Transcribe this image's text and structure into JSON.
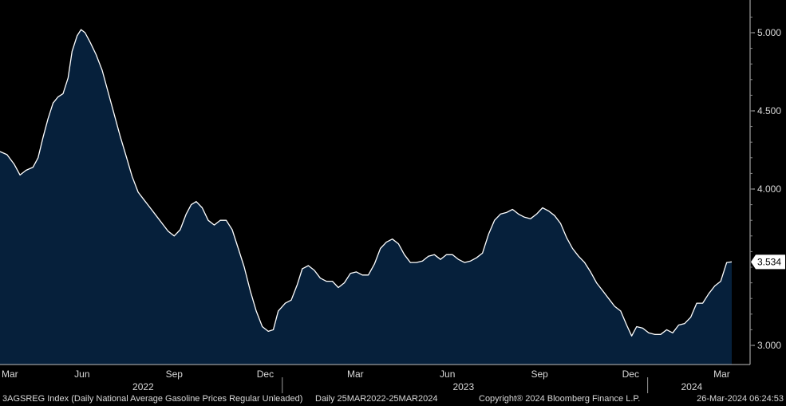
{
  "colors": {
    "background": "#000000",
    "area_fill": "#06203b",
    "line": "#ffffff",
    "text": "#d8d8d8",
    "last_value_bg": "#ffffff",
    "last_value_text": "#000000"
  },
  "footer": {
    "ticker": "3AGSREG Index (Daily National Average Gasoline Prices Regular Unleaded)",
    "range": "Daily 25MAR2022-25MAR2024",
    "copyright": "Copyright® 2024 Bloomberg Finance L.P.",
    "timestamp": "26-Mar-2024 06:24:53"
  },
  "chart_data": {
    "type": "area",
    "series": [
      {
        "points": [
          [
            "2022-03-25",
            4.24
          ],
          [
            "2022-04-01",
            4.22
          ],
          [
            "2022-04-08",
            4.16
          ],
          [
            "2022-04-14",
            4.09
          ],
          [
            "2022-04-20",
            4.12
          ],
          [
            "2022-04-27",
            4.14
          ],
          [
            "2022-05-02",
            4.2
          ],
          [
            "2022-05-07",
            4.33
          ],
          [
            "2022-05-12",
            4.45
          ],
          [
            "2022-05-17",
            4.55
          ],
          [
            "2022-05-22",
            4.59
          ],
          [
            "2022-05-27",
            4.61
          ],
          [
            "2022-06-01",
            4.71
          ],
          [
            "2022-06-05",
            4.88
          ],
          [
            "2022-06-10",
            4.98
          ],
          [
            "2022-06-14",
            5.02
          ],
          [
            "2022-06-18",
            5.0
          ],
          [
            "2022-06-23",
            4.94
          ],
          [
            "2022-06-29",
            4.86
          ],
          [
            "2022-07-05",
            4.76
          ],
          [
            "2022-07-11",
            4.62
          ],
          [
            "2022-07-17",
            4.48
          ],
          [
            "2022-07-23",
            4.34
          ],
          [
            "2022-07-29",
            4.21
          ],
          [
            "2022-08-04",
            4.08
          ],
          [
            "2022-08-10",
            3.98
          ],
          [
            "2022-08-16",
            3.93
          ],
          [
            "2022-08-22",
            3.88
          ],
          [
            "2022-08-28",
            3.83
          ],
          [
            "2022-09-03",
            3.78
          ],
          [
            "2022-09-09",
            3.73
          ],
          [
            "2022-09-15",
            3.7
          ],
          [
            "2022-09-21",
            3.74
          ],
          [
            "2022-09-27",
            3.84
          ],
          [
            "2022-10-02",
            3.9
          ],
          [
            "2022-10-07",
            3.92
          ],
          [
            "2022-10-13",
            3.88
          ],
          [
            "2022-10-19",
            3.8
          ],
          [
            "2022-10-25",
            3.77
          ],
          [
            "2022-10-31",
            3.8
          ],
          [
            "2022-11-06",
            3.8
          ],
          [
            "2022-11-12",
            3.74
          ],
          [
            "2022-11-18",
            3.62
          ],
          [
            "2022-11-24",
            3.5
          ],
          [
            "2022-11-30",
            3.35
          ],
          [
            "2022-12-06",
            3.22
          ],
          [
            "2022-12-12",
            3.12
          ],
          [
            "2022-12-18",
            3.09
          ],
          [
            "2022-12-23",
            3.1
          ],
          [
            "2022-12-28",
            3.22
          ],
          [
            "2023-01-04",
            3.27
          ],
          [
            "2023-01-10",
            3.29
          ],
          [
            "2023-01-16",
            3.39
          ],
          [
            "2023-01-21",
            3.49
          ],
          [
            "2023-01-27",
            3.51
          ],
          [
            "2023-02-02",
            3.48
          ],
          [
            "2023-02-08",
            3.43
          ],
          [
            "2023-02-14",
            3.41
          ],
          [
            "2023-02-20",
            3.41
          ],
          [
            "2023-02-26",
            3.37
          ],
          [
            "2023-03-04",
            3.4
          ],
          [
            "2023-03-10",
            3.46
          ],
          [
            "2023-03-16",
            3.47
          ],
          [
            "2023-03-22",
            3.45
          ],
          [
            "2023-03-28",
            3.45
          ],
          [
            "2023-04-03",
            3.52
          ],
          [
            "2023-04-09",
            3.62
          ],
          [
            "2023-04-15",
            3.66
          ],
          [
            "2023-04-21",
            3.68
          ],
          [
            "2023-04-27",
            3.65
          ],
          [
            "2023-05-03",
            3.58
          ],
          [
            "2023-05-09",
            3.53
          ],
          [
            "2023-05-15",
            3.53
          ],
          [
            "2023-05-21",
            3.54
          ],
          [
            "2023-05-27",
            3.57
          ],
          [
            "2023-06-02",
            3.58
          ],
          [
            "2023-06-08",
            3.55
          ],
          [
            "2023-06-14",
            3.58
          ],
          [
            "2023-06-20",
            3.58
          ],
          [
            "2023-06-26",
            3.55
          ],
          [
            "2023-07-02",
            3.53
          ],
          [
            "2023-07-08",
            3.54
          ],
          [
            "2023-07-14",
            3.56
          ],
          [
            "2023-07-20",
            3.59
          ],
          [
            "2023-07-26",
            3.71
          ],
          [
            "2023-08-01",
            3.8
          ],
          [
            "2023-08-07",
            3.84
          ],
          [
            "2023-08-13",
            3.85
          ],
          [
            "2023-08-19",
            3.87
          ],
          [
            "2023-08-25",
            3.84
          ],
          [
            "2023-08-31",
            3.82
          ],
          [
            "2023-09-06",
            3.81
          ],
          [
            "2023-09-12",
            3.84
          ],
          [
            "2023-09-18",
            3.88
          ],
          [
            "2023-09-24",
            3.86
          ],
          [
            "2023-09-30",
            3.83
          ],
          [
            "2023-10-06",
            3.78
          ],
          [
            "2023-10-12",
            3.69
          ],
          [
            "2023-10-18",
            3.62
          ],
          [
            "2023-10-24",
            3.57
          ],
          [
            "2023-10-30",
            3.53
          ],
          [
            "2023-11-05",
            3.47
          ],
          [
            "2023-11-11",
            3.4
          ],
          [
            "2023-11-17",
            3.35
          ],
          [
            "2023-11-23",
            3.3
          ],
          [
            "2023-11-29",
            3.25
          ],
          [
            "2023-12-05",
            3.22
          ],
          [
            "2023-12-11",
            3.13
          ],
          [
            "2023-12-16",
            3.06
          ],
          [
            "2023-12-21",
            3.12
          ],
          [
            "2023-12-27",
            3.11
          ],
          [
            "2024-01-02",
            3.08
          ],
          [
            "2024-01-08",
            3.07
          ],
          [
            "2024-01-14",
            3.07
          ],
          [
            "2024-01-20",
            3.1
          ],
          [
            "2024-01-26",
            3.08
          ],
          [
            "2024-02-01",
            3.13
          ],
          [
            "2024-02-07",
            3.14
          ],
          [
            "2024-02-13",
            3.18
          ],
          [
            "2024-02-19",
            3.27
          ],
          [
            "2024-02-25",
            3.27
          ],
          [
            "2024-03-02",
            3.33
          ],
          [
            "2024-03-08",
            3.38
          ],
          [
            "2024-03-14",
            3.41
          ],
          [
            "2024-03-20",
            3.53
          ],
          [
            "2024-03-25",
            3.534
          ]
        ]
      }
    ],
    "y_ticks": [
      "5.000",
      "4.500",
      "4.000",
      "3.000"
    ],
    "y_tick_values": [
      5.0,
      4.5,
      4.0,
      3.0
    ],
    "ylim": [
      2.9,
      5.2
    ],
    "xlim": [
      "2022-03-25",
      "2024-03-25"
    ],
    "month_labels": [
      {
        "label": "Mar",
        "date": "2022-03-25"
      },
      {
        "label": "Jun",
        "date": "2022-06-15"
      },
      {
        "label": "Sep",
        "date": "2022-09-15"
      },
      {
        "label": "Dec",
        "date": "2022-12-15"
      },
      {
        "label": "Mar",
        "date": "2023-03-15"
      },
      {
        "label": "Jun",
        "date": "2023-06-15"
      },
      {
        "label": "Sep",
        "date": "2023-09-15"
      },
      {
        "label": "Dec",
        "date": "2023-12-15"
      },
      {
        "label": "Mar",
        "date": "2024-03-15"
      }
    ],
    "year_labels": [
      {
        "label": "2022",
        "date": "2022-08-15"
      },
      {
        "label": "2023",
        "date": "2023-07-01"
      },
      {
        "label": "2024",
        "date": "2024-02-14"
      }
    ],
    "year_dividers": [
      "2023-01-01",
      "2024-01-01"
    ],
    "last_value": {
      "value": 3.534,
      "label": "3.534"
    },
    "grid": false,
    "legend": "none"
  }
}
